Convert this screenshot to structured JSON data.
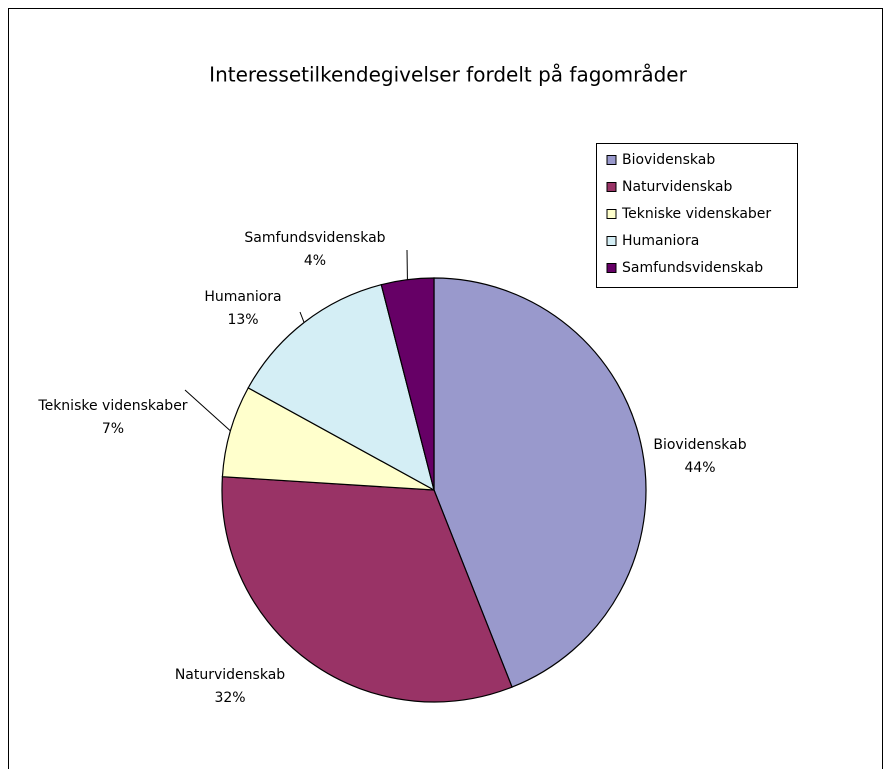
{
  "chart_data": {
    "type": "pie",
    "title": "Interessetilkendegivelser fordelt på fagområder",
    "categories": [
      "Biovidenskab",
      "Naturvidenskab",
      "Tekniske videnskaber",
      "Humaniora",
      "Samfundsvidenskab"
    ],
    "values": [
      44,
      32,
      7,
      13,
      4
    ],
    "value_labels": [
      "44%",
      "32%",
      "7%",
      "13%",
      "4%"
    ],
    "colors": [
      "#9999cc",
      "#993366",
      "#ffffcc",
      "#d4eef5",
      "#660066"
    ],
    "legend": "right"
  }
}
